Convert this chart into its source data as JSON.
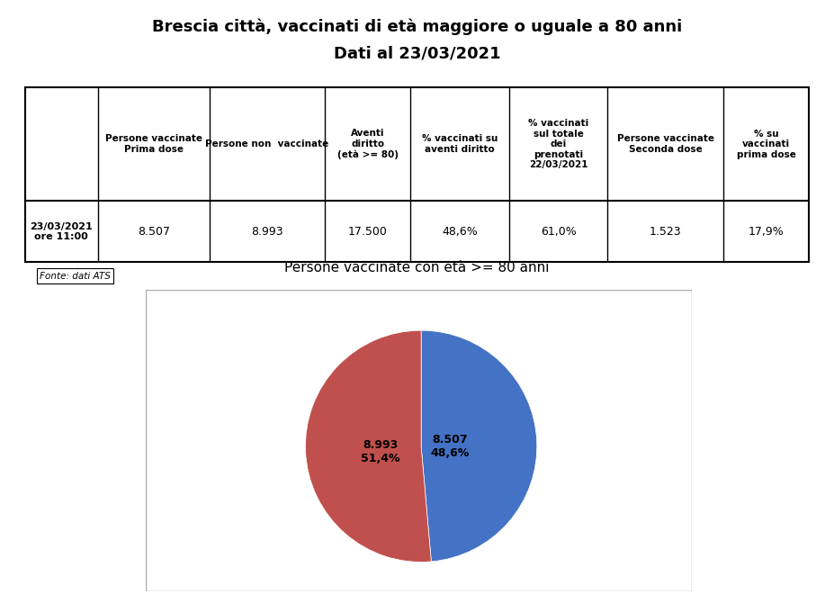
{
  "title_line1": "Brescia città, vaccinati di età maggiore o uguale a 80 anni",
  "title_line2": "Dati al 23/03/2021",
  "table_headers": [
    "",
    "Persone vaccinate\nPrima dose",
    "Persone non  vaccinate",
    "Aventi\ndiritto\n(età >= 80)",
    "% vaccinati su\naventi diritto",
    "% vaccinati\nsul totale\ndei\nprenotati\n22/03/2021",
    "Persone vaccinate\nSeconda dose",
    "% su\nvaccinati\nprima dose"
  ],
  "table_row_label": "23/03/2021\nore 11:00",
  "table_values": [
    "8.507",
    "8.993",
    "17.500",
    "48,6%",
    "61,0%",
    "1.523",
    "17,9%"
  ],
  "fonte_text": "Fonte: dati ATS",
  "pie_title": "Persone vaccinate con età >= 80 anni",
  "pie_values": [
    8507,
    8993
  ],
  "pie_labels": [
    "8.507\n48,6%",
    "8.993\n51,4%"
  ],
  "pie_colors": [
    "#4472C4",
    "#C0504D"
  ],
  "pie_legend_labels": [
    "Persone vaccinate Prima dose",
    "Persone non  vaccinate"
  ],
  "bg_color": "#FFFFFF"
}
